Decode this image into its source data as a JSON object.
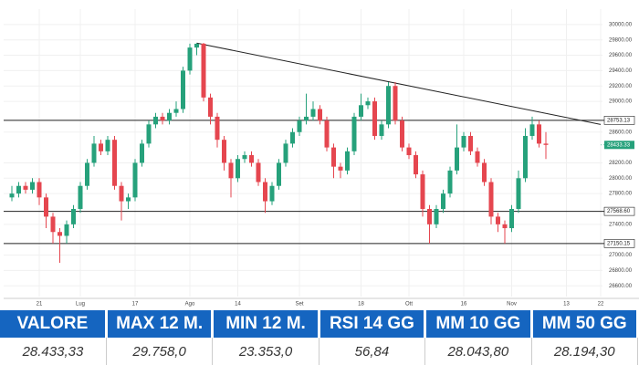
{
  "chart_data": {
    "type": "candlestick",
    "categories": [
      null,
      null,
      null,
      null,
      "21",
      null,
      null,
      null,
      null,
      null,
      "Lug",
      null,
      null,
      null,
      null,
      null,
      null,
      null,
      "17",
      null,
      null,
      null,
      null,
      null,
      null,
      null,
      "Ago",
      null,
      null,
      null,
      null,
      null,
      null,
      "14",
      null,
      null,
      null,
      null,
      null,
      null,
      null,
      null,
      "Set",
      null,
      null,
      null,
      null,
      null,
      null,
      null,
      null,
      "18",
      null,
      null,
      null,
      null,
      null,
      null,
      "Ott",
      null,
      null,
      null,
      null,
      null,
      null,
      null,
      "16",
      null,
      null,
      null,
      null,
      null,
      null,
      "Nov",
      null,
      null,
      null,
      null,
      null,
      null,
      null,
      "13",
      null,
      null,
      null,
      null,
      "22"
    ],
    "open": [
      27750,
      27800,
      27900,
      27850,
      27950,
      27750,
      27500,
      27300,
      27250,
      27400,
      27600,
      27900,
      28200,
      28450,
      28350,
      28500,
      27900,
      27700,
      27750,
      28200,
      28450,
      28700,
      28800,
      28750,
      28850,
      28900,
      29400,
      29700,
      29750,
      29050,
      28800,
      28500,
      28200,
      28000,
      28250,
      28300,
      28200,
      27950,
      27700,
      27900,
      28200,
      28450,
      28600,
      28750,
      28800,
      28900,
      28750,
      28400,
      28150,
      28100,
      28350,
      28800,
      28950,
      29000,
      28550,
      28700,
      29200,
      28750,
      28400,
      28300,
      28050,
      27600,
      27400,
      27600,
      27800,
      28100,
      28400,
      28550,
      28350,
      28200,
      27950,
      27500,
      27400,
      27350,
      27600,
      28000,
      28550,
      28700,
      28450,
      null,
      null,
      null,
      null,
      null,
      null,
      null,
      null
    ],
    "high": [
      27900,
      27950,
      27950,
      28000,
      28000,
      27800,
      27550,
      27350,
      27450,
      27650,
      27950,
      28250,
      28550,
      28500,
      28550,
      28550,
      27950,
      27800,
      28250,
      28500,
      28750,
      28850,
      28850,
      28900,
      29000,
      29450,
      29750,
      29758,
      29760,
      29100,
      28850,
      28550,
      28250,
      28300,
      28350,
      28350,
      28250,
      28000,
      27950,
      28250,
      28500,
      28650,
      28800,
      29100,
      29000,
      28950,
      28800,
      28450,
      28200,
      28400,
      28850,
      29100,
      29050,
      29050,
      28750,
      29250,
      29250,
      28800,
      28450,
      28350,
      28100,
      27650,
      27650,
      27850,
      28150,
      28700,
      28600,
      28600,
      28400,
      28250,
      28000,
      27550,
      27450,
      27650,
      28100,
      28650,
      28800,
      28750,
      28600,
      null,
      null,
      null,
      null,
      null,
      null,
      null,
      null
    ],
    "low": [
      27700,
      27750,
      27800,
      27800,
      27650,
      27350,
      27150,
      26900,
      27150,
      27350,
      27550,
      27850,
      28150,
      28300,
      28300,
      27850,
      27450,
      27600,
      27700,
      28150,
      28400,
      28650,
      28700,
      28700,
      28800,
      28850,
      29350,
      29600,
      29000,
      28700,
      28400,
      28100,
      27750,
      27950,
      28200,
      28150,
      27900,
      27550,
      27650,
      27850,
      28150,
      28400,
      28550,
      28700,
      28750,
      28700,
      28350,
      28000,
      28000,
      28050,
      28300,
      28750,
      28900,
      28500,
      28500,
      28650,
      28700,
      28350,
      28250,
      28000,
      27500,
      27150,
      27350,
      27550,
      27750,
      28050,
      28350,
      28300,
      28150,
      27900,
      27400,
      27300,
      27150,
      27300,
      27550,
      27950,
      28500,
      28400,
      28250,
      null,
      null,
      null,
      null,
      null,
      null,
      null,
      null
    ],
    "close": [
      27800,
      27900,
      27850,
      27950,
      27750,
      27500,
      27300,
      27250,
      27400,
      27600,
      27900,
      28200,
      28450,
      28350,
      28500,
      27900,
      27700,
      27750,
      28200,
      28450,
      28700,
      28800,
      28750,
      28850,
      28900,
      29400,
      29700,
      29750,
      29050,
      28800,
      28500,
      28200,
      28000,
      28250,
      28300,
      28200,
      27950,
      27700,
      27900,
      28200,
      28450,
      28600,
      28750,
      28800,
      28900,
      28750,
      28400,
      28150,
      28100,
      28350,
      28800,
      28950,
      29000,
      28550,
      28700,
      29200,
      28750,
      28400,
      28300,
      28050,
      27600,
      27400,
      27600,
      27800,
      28100,
      28400,
      28550,
      28350,
      28200,
      27950,
      27500,
      27400,
      27350,
      27600,
      28000,
      28550,
      28700,
      28450,
      28433.33,
      null,
      null,
      null,
      null,
      null,
      null,
      null,
      null
    ],
    "up_color": "#26a17b",
    "down_color": "#e5464f",
    "ylim": [
      26460,
      30200
    ],
    "yticks": [
      {
        "value": 26600,
        "label": "26600.00"
      },
      {
        "value": 26800,
        "label": "26800.00"
      },
      {
        "value": 27000,
        "label": "27000.00"
      },
      {
        "value": 27400,
        "label": "27400.00"
      },
      {
        "value": 27800,
        "label": "27800.00"
      },
      {
        "value": 28000,
        "label": "28000.00"
      },
      {
        "value": 28200,
        "label": "28200.00"
      },
      {
        "value": 28600,
        "label": "28600.00"
      },
      {
        "value": 29000,
        "label": "29000.00"
      },
      {
        "value": 29200,
        "label": "29200.00"
      },
      {
        "value": 29400,
        "label": "29400.00"
      },
      {
        "value": 29600,
        "label": "29600.00"
      },
      {
        "value": 29800,
        "label": "29800.00"
      },
      {
        "value": 30000,
        "label": "30000.00"
      }
    ],
    "levels": [
      {
        "value": 28753.13,
        "label": "28753.13"
      },
      {
        "value": 27568.6,
        "label": "27568.60"
      },
      {
        "value": 27150.15,
        "label": "27150.15"
      }
    ],
    "last_price": {
      "value": 28433.33,
      "label": "28433.33"
    },
    "trendline": {
      "start_index": 27,
      "start_value": 29758,
      "end_index": 86,
      "end_value": 28700
    },
    "grid": true
  },
  "table": {
    "headers": [
      "VALORE",
      "MAX 12 M.",
      "MIN 12 M.",
      "RSI 14 GG",
      "MM 10 GG",
      "MM 50 GG"
    ],
    "values": [
      "28.433,33",
      "29.758,0",
      "23.353,0",
      "56,84",
      "28.043,80",
      "28.194,30"
    ]
  }
}
